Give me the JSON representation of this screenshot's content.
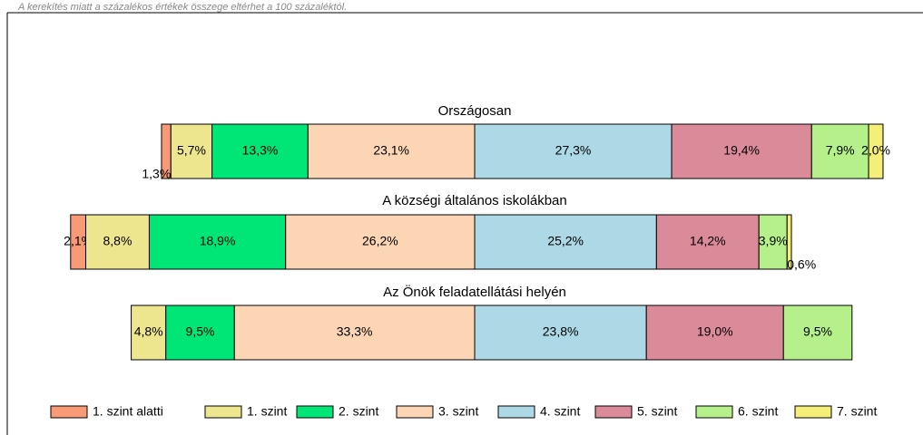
{
  "chart_data": {
    "type": "bar",
    "orientation": "horizontal",
    "stacked": true,
    "note": "A kerekítés miatt a  százalékos értékek összege eltérhet a 100 százaléktól.",
    "categories": [
      "Országosan",
      "A községi általános iskolákban",
      "Az Önök feladatellátási helyén"
    ],
    "series": [
      {
        "name": "1. szint alatti",
        "color": "#f89a76",
        "values": [
          1.3,
          2.1,
          null
        ],
        "value_labels": [
          "1,3%",
          "2,1%",
          null
        ]
      },
      {
        "name": "1. szint",
        "color": "#ede68f",
        "values": [
          5.7,
          8.8,
          4.8
        ],
        "value_labels": [
          "5,7%",
          "8,8%",
          "4,8%"
        ]
      },
      {
        "name": "2. szint",
        "color": "#00e676",
        "values": [
          13.3,
          18.9,
          9.5
        ],
        "value_labels": [
          "13,3%",
          "18,9%",
          "9,5%"
        ]
      },
      {
        "name": "3. szint",
        "color": "#fcd5b4",
        "values": [
          23.1,
          26.2,
          33.3
        ],
        "value_labels": [
          "23,1%",
          "26,2%",
          "33,3%"
        ]
      },
      {
        "name": "4. szint",
        "color": "#add8e6",
        "values": [
          27.3,
          25.2,
          23.8
        ],
        "value_labels": [
          "27,3%",
          "25,2%",
          "23,8%"
        ]
      },
      {
        "name": "5. szint",
        "color": "#db8a9a",
        "values": [
          19.4,
          14.2,
          19.0
        ],
        "value_labels": [
          "19,4%",
          "14,2%",
          "19,0%"
        ]
      },
      {
        "name": "6. szint",
        "color": "#b5f08a",
        "values": [
          7.9,
          3.9,
          9.5
        ],
        "value_labels": [
          "7,9%",
          "3,9%",
          "9,5%"
        ]
      },
      {
        "name": "7. szint",
        "color": "#f5ef7a",
        "values": [
          2.0,
          0.6,
          null
        ],
        "value_labels": [
          "2,0%",
          "0,6%",
          null
        ]
      }
    ]
  }
}
